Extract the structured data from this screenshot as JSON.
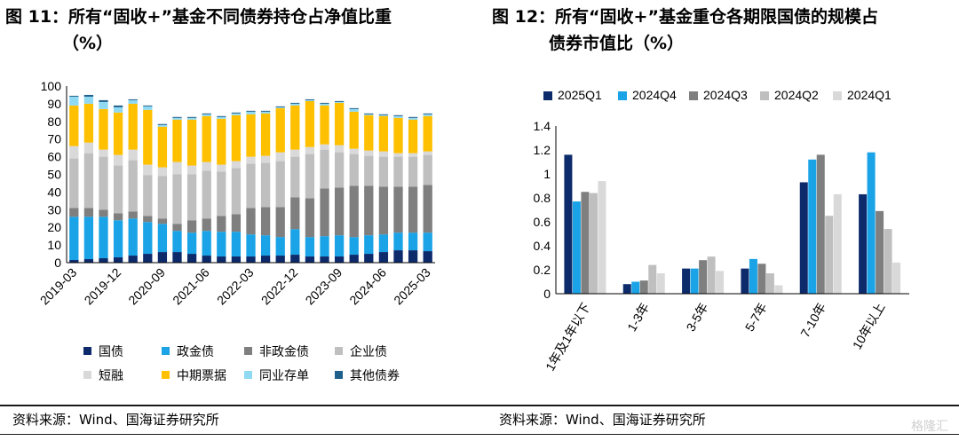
{
  "left": {
    "title_line1": "图 11：所有“固收+”基金不同债券持仓占净值比重",
    "title_line2": "（%）",
    "source": "资料来源：Wind、国海证券研究所"
  },
  "right": {
    "title_line1": "图 12：所有“固收+”基金重仓各期限国债的规模占",
    "title_line2": "债券市值比（%）",
    "source": "资料来源：Wind、国海证券研究所"
  },
  "watermark": "格隆汇",
  "colors": {
    "navy": "#0d2a6b",
    "blue": "#1aa3e6",
    "darkgray": "#7f7f7f",
    "gray": "#bfbfbf",
    "lightgray": "#d9d9d9",
    "yellow": "#ffc000",
    "lightblue": "#8fd9f2",
    "teal": "#1f5f8b"
  },
  "chart_data": [
    {
      "type": "bar",
      "stacked": true,
      "ylim": [
        0,
        100
      ],
      "yticks": [
        0,
        10,
        20,
        30,
        40,
        50,
        60,
        70,
        80,
        90,
        100
      ],
      "x_tick_labels": [
        "2019-03",
        "2019-12",
        "2020-09",
        "2021-06",
        "2022-03",
        "2022-12",
        "2023-09",
        "2024-06",
        "2025-03"
      ],
      "categories": [
        "2019-03",
        "2019-06",
        "2019-09",
        "2019-12",
        "2020-03",
        "2020-06",
        "2020-09",
        "2020-12",
        "2021-03",
        "2021-06",
        "2021-09",
        "2021-12",
        "2022-03",
        "2022-06",
        "2022-09",
        "2022-12",
        "2023-03",
        "2023-06",
        "2023-09",
        "2023-12",
        "2024-03",
        "2024-06",
        "2024-09",
        "2024-12",
        "2025-03"
      ],
      "series": [
        {
          "name": "国债",
          "color": "#0d2a6b",
          "values": [
            1.5,
            2,
            2.5,
            3,
            4,
            5,
            6,
            6,
            5,
            4,
            3.5,
            3.5,
            3.5,
            4,
            4,
            4.5,
            3.5,
            3.5,
            3.5,
            4.5,
            5,
            6,
            7,
            7,
            6.5
          ]
        },
        {
          "name": "政金债",
          "color": "#1aa3e6",
          "values": [
            24.5,
            24,
            23.5,
            21,
            21,
            18,
            16,
            12,
            12,
            14,
            14,
            14,
            12.5,
            11.5,
            10.5,
            14.5,
            11,
            11.5,
            12,
            10,
            10.5,
            10,
            10,
            10,
            10.5
          ]
        },
        {
          "name": "非政金债",
          "color": "#7f7f7f",
          "values": [
            5,
            5,
            4,
            4,
            4,
            3.5,
            3,
            4,
            7,
            7,
            9,
            10,
            15,
            16,
            17,
            18,
            22,
            27,
            27,
            29,
            28,
            27,
            26,
            26,
            27
          ]
        },
        {
          "name": "企业债",
          "color": "#bfbfbf",
          "values": [
            28,
            31,
            30,
            27,
            29,
            23,
            24,
            28,
            26,
            27,
            25,
            26,
            25,
            25,
            26,
            23,
            25,
            22,
            20,
            18,
            17,
            17,
            17,
            17,
            17
          ]
        },
        {
          "name": "短融",
          "color": "#d9d9d9",
          "values": [
            7,
            6,
            4,
            6,
            6,
            6,
            5,
            7,
            5,
            5,
            4,
            4,
            4,
            4,
            5,
            4,
            4,
            3,
            4,
            3,
            3,
            3,
            2,
            2,
            2
          ]
        },
        {
          "name": "中期票据",
          "color": "#ffc000",
          "values": [
            23,
            22,
            23,
            24,
            26,
            31,
            23,
            24,
            26,
            26,
            26,
            26,
            24,
            24,
            25,
            25,
            26,
            22,
            24,
            21,
            20,
            20,
            20,
            19,
            20
          ]
        },
        {
          "name": "同业存单",
          "color": "#8fd9f2",
          "values": [
            5,
            4,
            4,
            3,
            2,
            2,
            1,
            1,
            1,
            1,
            1,
            1,
            1.5,
            1,
            0.5,
            1,
            0.5,
            1,
            0.5,
            1.5,
            0.5,
            0.5,
            1,
            1,
            1
          ]
        },
        {
          "name": "其他债券",
          "color": "#1f5f8b",
          "values": [
            0.5,
            1,
            1,
            1,
            0.5,
            0.5,
            0.5,
            0.5,
            0.5,
            0.5,
            0.5,
            0.5,
            0.5,
            0.5,
            0.5,
            0.5,
            0.5,
            0.5,
            0.5,
            0.5,
            0.5,
            0.5,
            0.5,
            0.5,
            0.5
          ]
        }
      ]
    },
    {
      "type": "bar",
      "ylim": [
        0,
        1.4
      ],
      "yticks": [
        "0",
        "0.2",
        "0.4",
        "0.6",
        "0.8",
        "1",
        "1.2",
        "1.4"
      ],
      "categories": [
        "1年及1年以下",
        "1-3年",
        "3-5年",
        "5-7年",
        "7-10年",
        "10年以上"
      ],
      "series": [
        {
          "name": "2025Q1",
          "color": "#0d2a6b",
          "values": [
            1.16,
            0.08,
            0.21,
            0.21,
            0.93,
            0.83
          ]
        },
        {
          "name": "2024Q4",
          "color": "#1aa3e6",
          "values": [
            0.77,
            0.1,
            0.21,
            0.29,
            1.12,
            1.18
          ]
        },
        {
          "name": "2024Q3",
          "color": "#7f7f7f",
          "values": [
            0.85,
            0.11,
            0.28,
            0.25,
            1.16,
            0.69
          ]
        },
        {
          "name": "2024Q2",
          "color": "#bfbfbf",
          "values": [
            0.84,
            0.24,
            0.31,
            0.17,
            0.65,
            0.54
          ]
        },
        {
          "name": "2024Q1",
          "color": "#d9d9d9",
          "values": [
            0.94,
            0.17,
            0.19,
            0.07,
            0.83,
            0.26
          ]
        }
      ]
    }
  ]
}
